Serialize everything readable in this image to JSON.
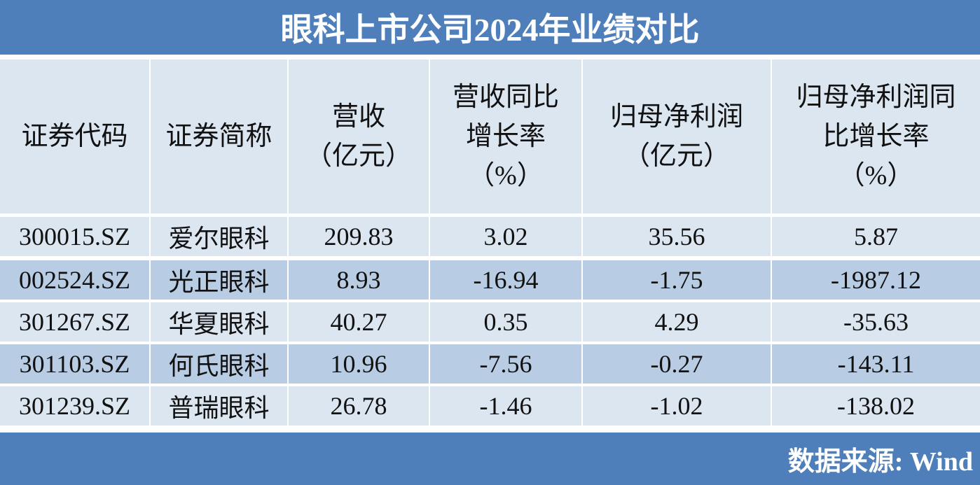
{
  "title": "眼科上市公司2024年业绩对比",
  "table": {
    "headers": [
      [
        "证券代码"
      ],
      [
        "证券简称"
      ],
      [
        "营收",
        "（亿元）"
      ],
      [
        "营收同比",
        "增长率",
        "（%）"
      ],
      [
        "归母净利润",
        "（亿元）"
      ],
      [
        "归母净利润同",
        "比增长率",
        "（%）"
      ]
    ],
    "rows": [
      [
        "300015.SZ",
        "爱尔眼科",
        209.83,
        3.02,
        35.56,
        5.87
      ],
      [
        "002524.SZ",
        "光正眼科",
        8.93,
        -16.94,
        -1.75,
        -1987.12
      ],
      [
        "301267.SZ",
        "华夏眼科",
        40.27,
        0.35,
        4.29,
        -35.63
      ],
      [
        "301103.SZ",
        "何氏眼科",
        10.96,
        -7.56,
        -0.27,
        -143.11
      ],
      [
        "301239.SZ",
        "普瑞眼科",
        26.78,
        -1.46,
        -1.02,
        -138.02
      ]
    ]
  },
  "source": "数据来源: Wind"
}
